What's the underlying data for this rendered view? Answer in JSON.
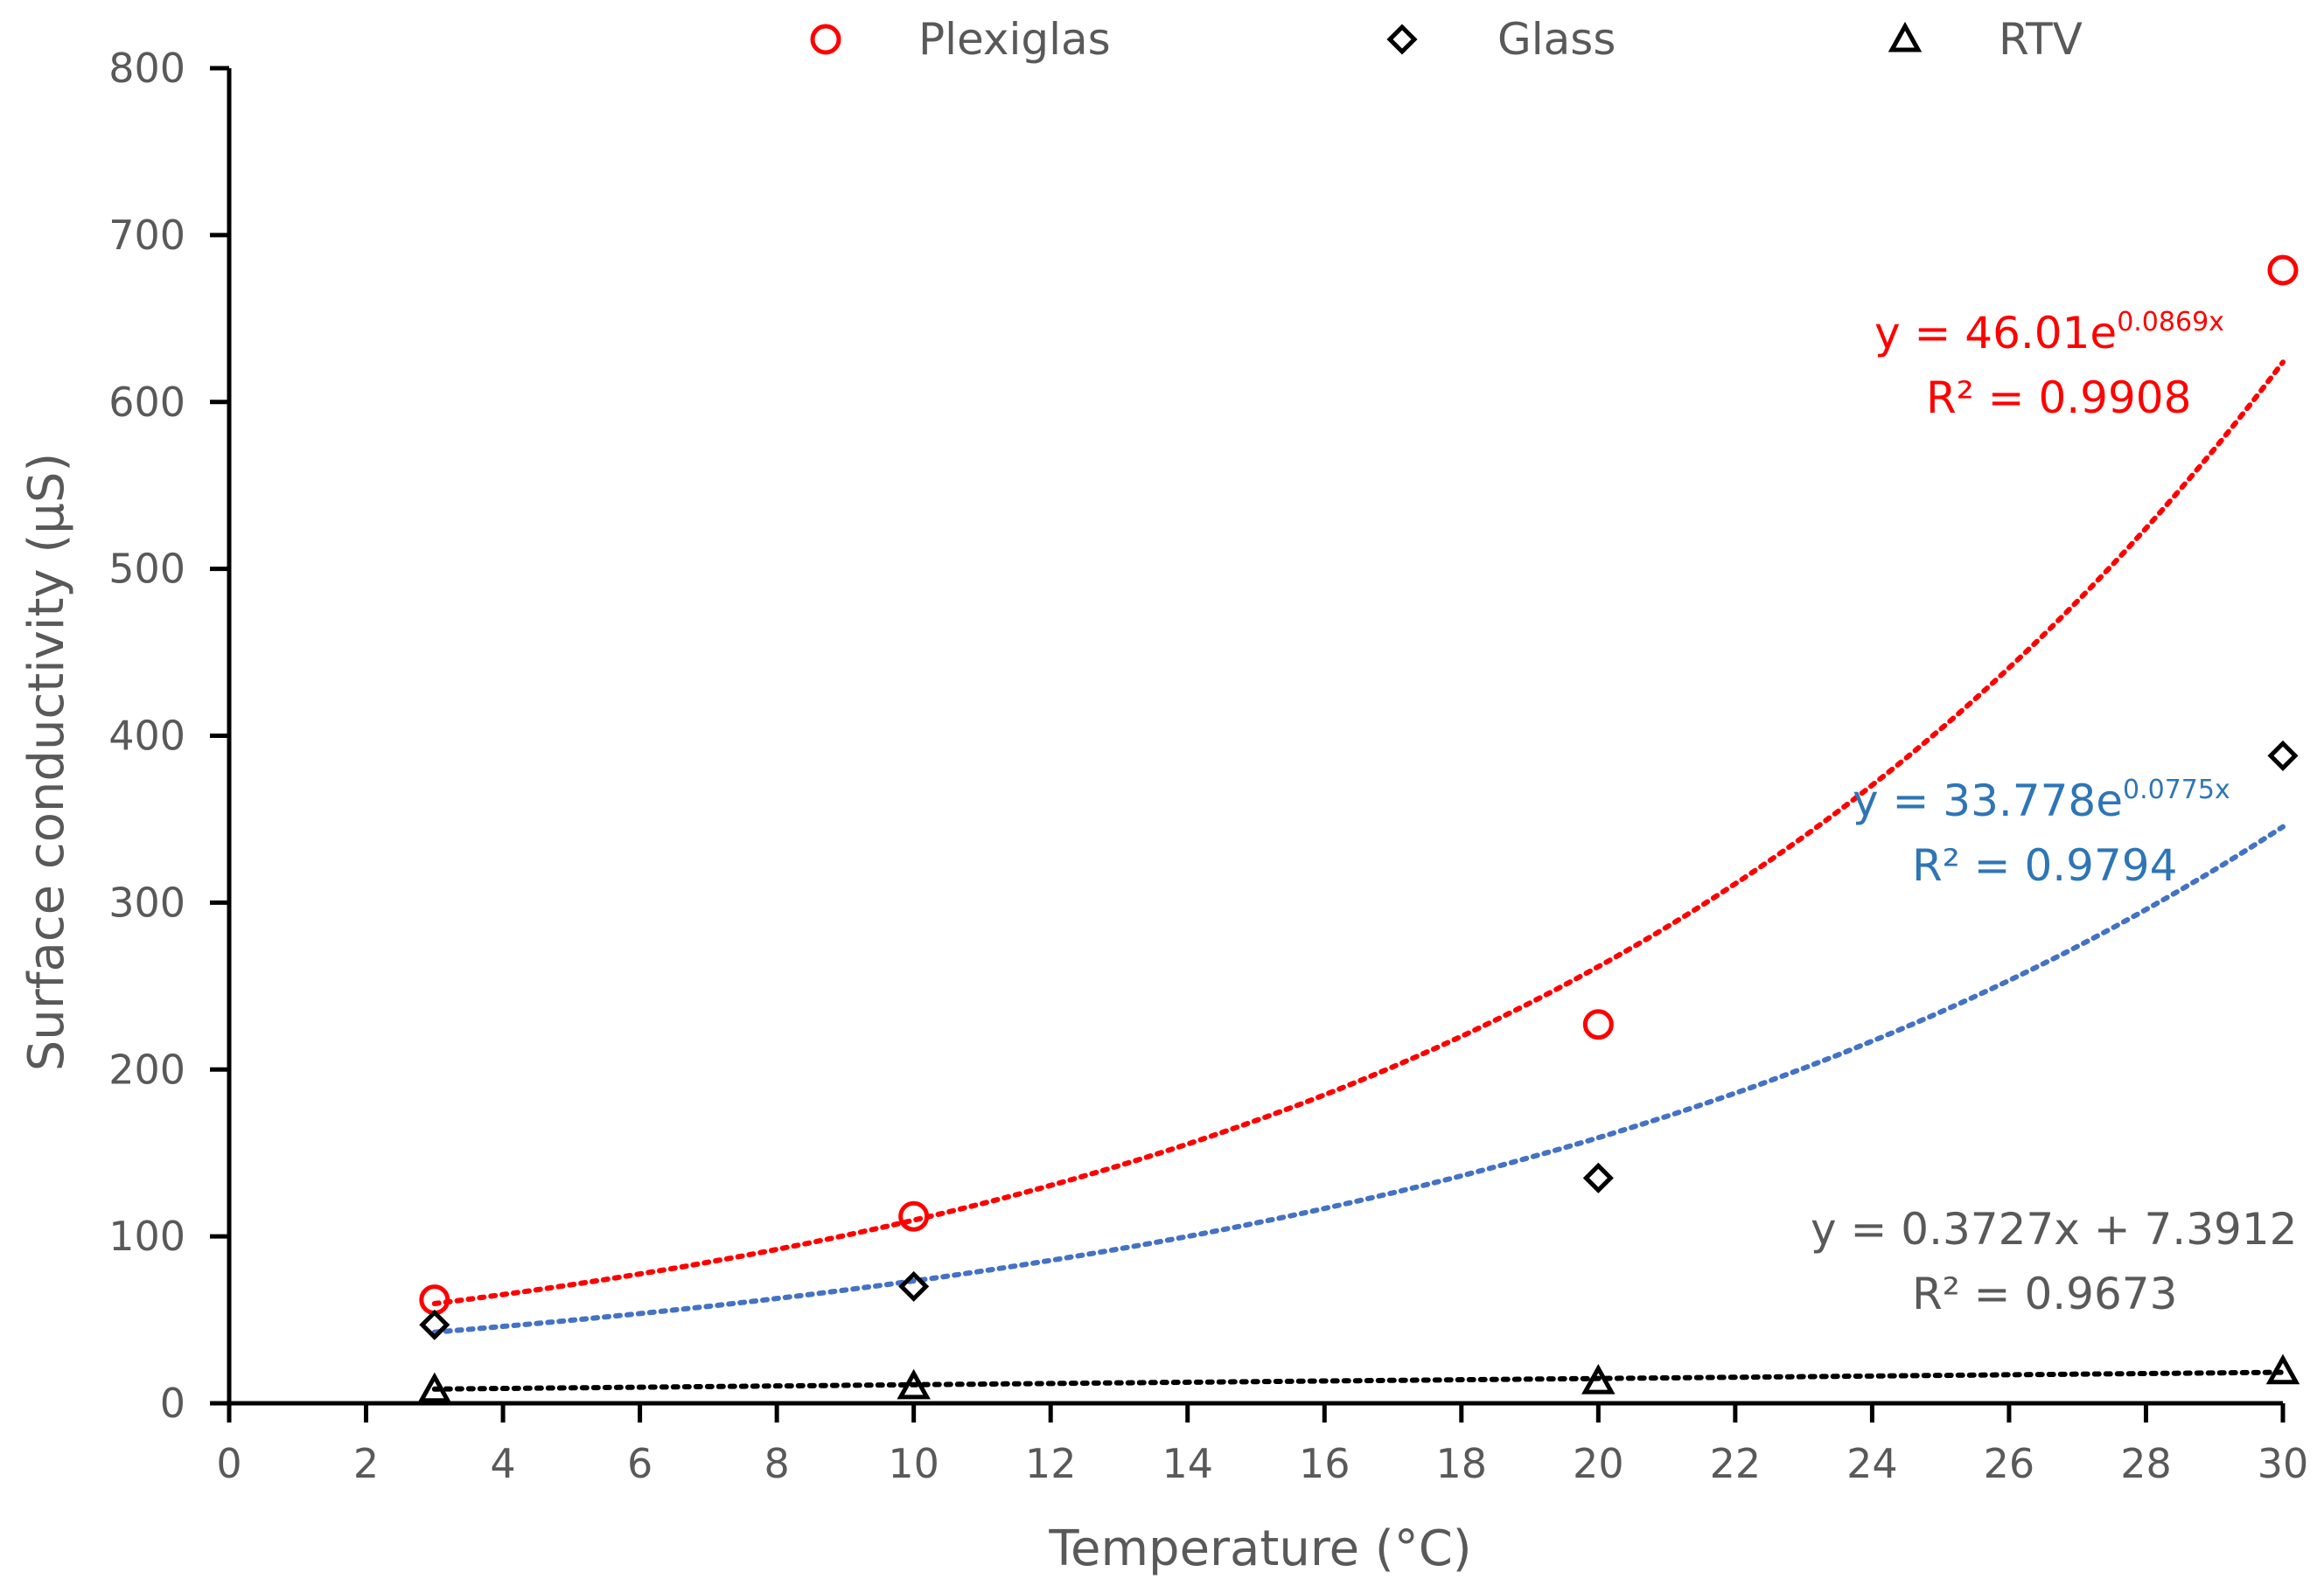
{
  "chart_data": {
    "type": "scatter",
    "title": "",
    "xlabel": "Temperature (°C)",
    "ylabel": "Surface conductivity (μS)",
    "xlim": [
      0,
      30
    ],
    "ylim": [
      0,
      800
    ],
    "xticks": [
      0,
      2,
      4,
      6,
      8,
      10,
      12,
      14,
      16,
      18,
      20,
      22,
      24,
      26,
      28,
      30
    ],
    "yticks": [
      0,
      100,
      200,
      300,
      400,
      500,
      600,
      700,
      800
    ],
    "legend_position": "top",
    "series": [
      {
        "name": "Plexiglas",
        "marker": "circle",
        "color": "#ff0000",
        "trend_color": "#ff0000",
        "x": [
          3,
          10,
          20,
          30
        ],
        "y": [
          62,
          112,
          227,
          679
        ],
        "trend": {
          "type": "exp",
          "a": 46.01,
          "b": 0.0869
        },
        "equation_main": "y = 46.01e",
        "equation_exp": "0.0869x",
        "r2_text": "R² = 0.9908"
      },
      {
        "name": "Glass",
        "marker": "diamond",
        "color": "#000000",
        "trend_color": "#4472c4",
        "equation_color": "#2e75b6",
        "x": [
          3,
          10,
          20,
          30
        ],
        "y": [
          47,
          70,
          135,
          388
        ],
        "trend": {
          "type": "exp",
          "a": 33.778,
          "b": 0.0775
        },
        "equation_main": "y = 33.778e",
        "equation_exp": "0.0775x",
        "r2_text": "R² = 0.9794"
      },
      {
        "name": "RTV",
        "marker": "triangle",
        "color": "#000000",
        "trend_color": "#000000",
        "equation_color": "#595959",
        "x": [
          3,
          10,
          20,
          30
        ],
        "y": [
          8,
          10,
          13,
          19
        ],
        "trend": {
          "type": "linear",
          "m": 0.3727,
          "c": 7.3912
        },
        "equation_main": "y = 0.3727x + 7.3912",
        "equation_exp": "",
        "r2_text": "R² = 0.9673"
      }
    ]
  }
}
